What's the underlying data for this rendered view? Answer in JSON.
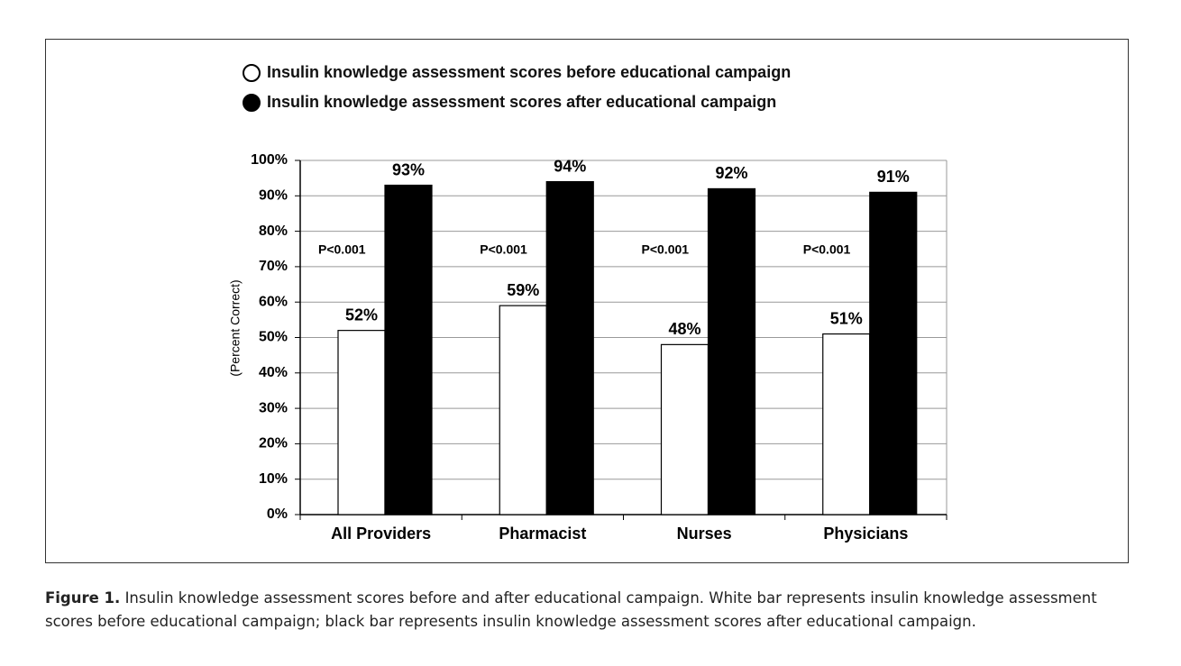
{
  "chart_data": {
    "type": "bar",
    "categories": [
      "All Providers",
      "Pharmacist",
      "Nurses",
      "Physicians"
    ],
    "series": [
      {
        "name": "Insulin knowledge assessment scores before educational campaign",
        "color": "#ffffff",
        "values": [
          52,
          59,
          48,
          51
        ],
        "value_labels": [
          "52%",
          "59%",
          "48%",
          "51%"
        ]
      },
      {
        "name": "Insulin knowledge assessment scores after educational campaign",
        "color": "#000000",
        "values": [
          93,
          94,
          92,
          91
        ],
        "value_labels": [
          "93%",
          "94%",
          "92%",
          "91%"
        ]
      }
    ],
    "annotations": [
      "P<0.001",
      "P<0.001",
      "P<0.001",
      "P<0.001"
    ],
    "ylabel": "(Percent Correct)",
    "ylim": [
      0,
      100
    ],
    "yticks": [
      {
        "value": 0,
        "label": "0%"
      },
      {
        "value": 10,
        "label": "10%"
      },
      {
        "value": 20,
        "label": "20%"
      },
      {
        "value": 30,
        "label": "30%"
      },
      {
        "value": 40,
        "label": "40%"
      },
      {
        "value": 50,
        "label": "50%"
      },
      {
        "value": 60,
        "label": "60%"
      },
      {
        "value": 70,
        "label": "70%"
      },
      {
        "value": 80,
        "label": "80%"
      },
      {
        "value": 90,
        "label": "90%"
      },
      {
        "value": 100,
        "label": "100%"
      }
    ],
    "grid": true,
    "legend": "top"
  },
  "caption": {
    "label": "Figure 1.",
    "text": "Insulin knowledge assessment scores before and after educational campaign. White bar represents insulin knowledge assessment scores before educational campaign; black bar represents insulin knowledge assessment scores after educational campaign."
  }
}
